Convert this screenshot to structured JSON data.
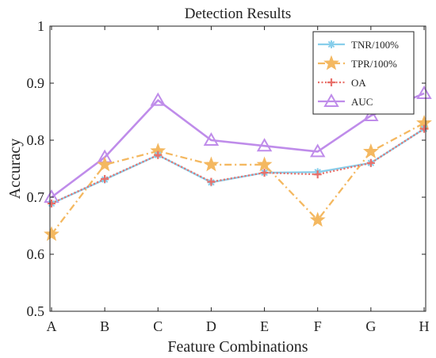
{
  "chart_data": {
    "type": "line",
    "title": "Detection Results",
    "xlabel": "Feature Combinations",
    "ylabel": "Accuracy",
    "categories": [
      "A",
      "B",
      "C",
      "D",
      "E",
      "F",
      "G",
      "H"
    ],
    "ylim": [
      0.5,
      1.0
    ],
    "yticks": [
      0.5,
      0.6,
      0.7,
      0.8,
      0.9,
      1.0
    ],
    "ytick_labels": [
      "0.5",
      "0.6",
      "0.7",
      "0.8",
      "0.9",
      "1"
    ],
    "grid": false,
    "legend": "top-right",
    "series": [
      {
        "name": "TNR/100%",
        "values": [
          0.689,
          0.731,
          0.774,
          0.726,
          0.743,
          0.744,
          0.76,
          0.82
        ],
        "color": "#87CEEB",
        "marker": "asterisk",
        "dash": "solid"
      },
      {
        "name": "TPR/100%",
        "values": [
          0.635,
          0.757,
          0.781,
          0.757,
          0.757,
          0.66,
          0.78,
          0.83
        ],
        "color": "#F4B860",
        "marker": "star",
        "dash": "dashdot"
      },
      {
        "name": "OA",
        "values": [
          0.689,
          0.732,
          0.774,
          0.727,
          0.743,
          0.74,
          0.76,
          0.82
        ],
        "color": "#E8706A",
        "marker": "plus",
        "dash": "dotted"
      },
      {
        "name": "AUC",
        "values": [
          0.7,
          0.77,
          0.87,
          0.8,
          0.79,
          0.78,
          0.843,
          0.882
        ],
        "color": "#BF8CEA",
        "marker": "triangle",
        "dash": "solid"
      }
    ]
  }
}
